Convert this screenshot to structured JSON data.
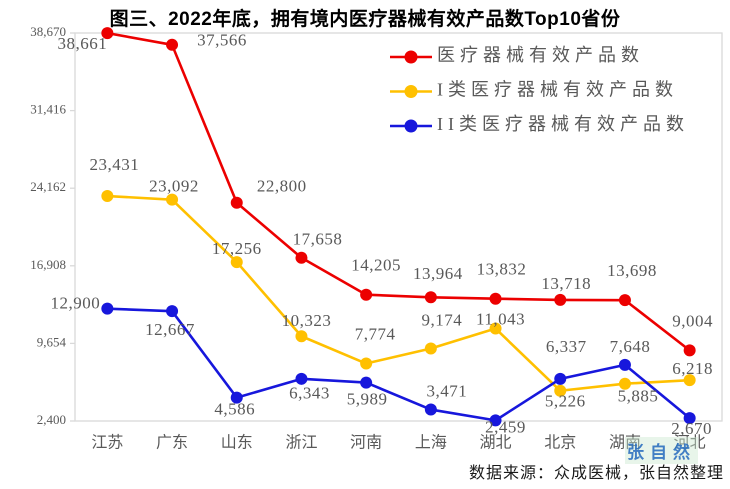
{
  "title": "图三、2022年底，拥有境内医疗器械有效产品数Top10省份",
  "source_note": "数据来源：众成医械，张自然整理",
  "watermark": "张自然",
  "colors": {
    "axis_line": "#D9D9D9",
    "label_gray": "#595959",
    "title_color": "#000000",
    "red": "#EC0000",
    "yellow": "#FFC000",
    "blue": "#1717DC"
  },
  "chart_data": {
    "type": "line",
    "title": "图三、2022年底，拥有境内医疗器械有效产品数Top10省份",
    "categories": [
      "江苏",
      "广东",
      "山东",
      "浙江",
      "河南",
      "上海",
      "湖北",
      "北京",
      "湖南",
      "河北"
    ],
    "series": [
      {
        "name": "医疗器械有效产品数",
        "color": "#EC0000",
        "values": [
          38661,
          37566,
          22800,
          17658,
          14205,
          13964,
          13832,
          13718,
          13698,
          9004
        ],
        "label_offsets": [
          [
            -25,
            12
          ],
          [
            50,
            -3
          ],
          [
            45,
            -15
          ],
          [
            16,
            -17
          ],
          [
            10,
            -28
          ],
          [
            7,
            -22
          ],
          [
            6,
            -28
          ],
          [
            6,
            -15
          ],
          [
            7,
            -28
          ],
          [
            3,
            -28
          ]
        ]
      },
      {
        "name": "I类医疗器械有效产品数",
        "color": "#FFC000",
        "values": [
          23431,
          23092,
          17256,
          10323,
          7774,
          9174,
          11043,
          5226,
          5885,
          6218
        ],
        "label_offsets": [
          [
            7,
            -30
          ],
          [
            2,
            -12
          ],
          [
            0,
            -12
          ],
          [
            5,
            -14
          ],
          [
            9,
            -28
          ],
          [
            11,
            -27
          ],
          [
            5,
            -8
          ],
          [
            5,
            12
          ],
          [
            13,
            14
          ],
          [
            3,
            -10
          ]
        ]
      },
      {
        "name": "II类医疗器械有效产品数",
        "color": "#1717DC",
        "values": [
          12900,
          12667,
          4586,
          6343,
          5989,
          3471,
          2459,
          6337,
          7648,
          2670
        ],
        "label_offsets": [
          [
            -32,
            -4
          ],
          [
            -2,
            20
          ],
          [
            -2,
            13
          ],
          [
            8,
            16
          ],
          [
            1,
            18
          ],
          [
            16,
            -17
          ],
          [
            10,
            8
          ],
          [
            6,
            -31
          ],
          [
            5,
            -17
          ],
          [
            2,
            12
          ]
        ]
      }
    ],
    "y_axis": {
      "min": 2400,
      "max": 38670,
      "tick_values": [
        38670,
        31416,
        24162,
        16908,
        9654,
        2400
      ],
      "tick_labels": [
        "38,670",
        "31,416",
        "24,162",
        "16,908",
        "9,654",
        "2,400"
      ]
    },
    "xlabel": "",
    "ylabel": "",
    "grid": false,
    "legend_position": "top-right",
    "source": "数据来源：众成医械，张自然整理"
  }
}
